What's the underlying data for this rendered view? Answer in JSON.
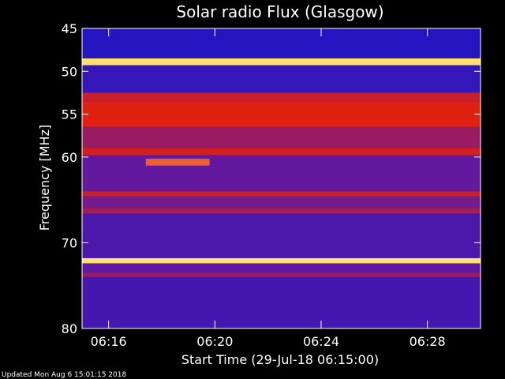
{
  "chart_data": {
    "type": "heatmap",
    "title": "Solar radio Flux (Glasgow)",
    "xlabel": "Start Time (29-Jul-18 06:15:00)",
    "ylabel": "Frequency [MHz]",
    "y_ticks": [
      "45",
      "50",
      "55",
      "60",
      "70",
      "80"
    ],
    "y_tick_values": [
      45,
      50,
      55,
      60,
      70,
      80
    ],
    "x_ticks": [
      "06:16",
      "06:20",
      "06:24",
      "06:28"
    ],
    "x_tick_minutes": [
      16,
      20,
      24,
      28
    ],
    "xlim_minutes": [
      15,
      30
    ],
    "ylim": [
      45,
      80
    ],
    "y_inverted": true,
    "colors": {
      "background": "#000000",
      "low": "#1a14c8",
      "mid": "#6a1a9a",
      "high": "#e02010",
      "peak": "#ffe070"
    },
    "bands": [
      {
        "from": 45.0,
        "to": 48.5,
        "level": 0.05
      },
      {
        "from": 48.5,
        "to": 49.3,
        "level": 1.0
      },
      {
        "from": 49.3,
        "to": 52.5,
        "level": 0.12
      },
      {
        "from": 52.5,
        "to": 53.5,
        "level": 0.75
      },
      {
        "from": 53.5,
        "to": 56.5,
        "level": 0.85
      },
      {
        "from": 56.5,
        "to": 59.0,
        "level": 0.55
      },
      {
        "from": 59.0,
        "to": 59.8,
        "level": 0.8
      },
      {
        "from": 59.8,
        "to": 64.0,
        "level": 0.32
      },
      {
        "from": 64.0,
        "to": 64.6,
        "level": 0.75
      },
      {
        "from": 64.6,
        "to": 66.0,
        "level": 0.4
      },
      {
        "from": 66.0,
        "to": 66.6,
        "level": 0.6
      },
      {
        "from": 66.6,
        "to": 71.8,
        "level": 0.22
      },
      {
        "from": 71.8,
        "to": 72.4,
        "level": 1.0
      },
      {
        "from": 72.4,
        "to": 73.5,
        "level": 0.3
      },
      {
        "from": 73.5,
        "to": 74.0,
        "level": 0.55
      },
      {
        "from": 74.0,
        "to": 80.0,
        "level": 0.18
      }
    ],
    "burst": {
      "t_start": 17.4,
      "t_end": 19.8,
      "f_low": 60.2,
      "f_high": 61.0,
      "level": 0.9
    }
  },
  "footer_text": "Updated Mon Aug  6 15:01:15 2018"
}
